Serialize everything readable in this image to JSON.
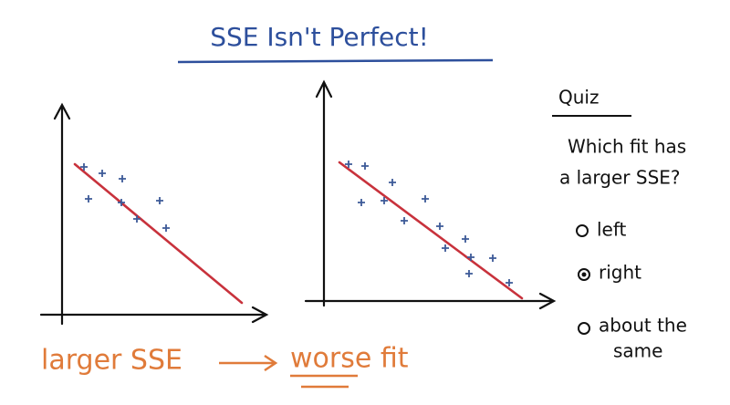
{
  "header": {
    "title": "SSE Isn't Perfect!"
  },
  "quiz": {
    "heading": "Quiz",
    "question_lines": [
      "Which fit has",
      "a larger SSE?"
    ],
    "options": [
      {
        "label_lines": [
          "left"
        ]
      },
      {
        "label_lines": [
          "right"
        ],
        "selected": true
      },
      {
        "label_lines": [
          "about the",
          "same"
        ]
      }
    ]
  },
  "footer": {
    "left": "larger SSE",
    "right": "worse fit"
  }
}
